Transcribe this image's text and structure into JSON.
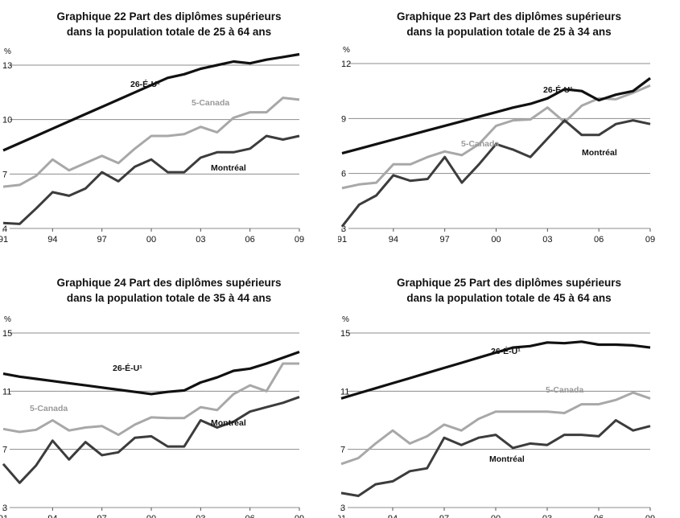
{
  "colors": {
    "usa": "#111111",
    "canada": "#a8a8a8",
    "montreal": "#3c3c3c",
    "grid": "#8c8c8c"
  },
  "chart_data": [
    {
      "type": "line",
      "title": "Graphique 22 Part des diplômes supérieurs",
      "subtitle": "dans la population totale de 25 à 64 ans",
      "ylabel": "%",
      "ylim": [
        4,
        13
      ],
      "yticks": [
        "4",
        "7",
        "10",
        "13"
      ],
      "x": [
        1991,
        1992,
        1993,
        1994,
        1995,
        1996,
        1997,
        1998,
        1999,
        2000,
        2001,
        2002,
        2003,
        2004,
        2005,
        2006,
        2007,
        2008,
        2009
      ],
      "xticks": [
        "91",
        "94",
        "97",
        "00",
        "03",
        "06",
        "09"
      ],
      "grid": true,
      "series": [
        {
          "name": "26-É-U¹",
          "values": [
            8.3,
            8.7,
            9.1,
            9.5,
            9.9,
            10.3,
            10.7,
            11.1,
            11.5,
            11.9,
            12.3,
            12.5,
            12.8,
            13.0,
            13.2,
            13.1,
            13.3,
            13.45,
            13.6
          ]
        },
        {
          "name": "5-Canada",
          "values": [
            6.3,
            6.4,
            6.9,
            7.8,
            7.2,
            7.6,
            8.0,
            7.6,
            8.4,
            9.1,
            9.1,
            9.2,
            9.6,
            9.3,
            10.1,
            10.4,
            10.4,
            11.2,
            11.1
          ]
        },
        {
          "name": "Montréal",
          "values": [
            4.3,
            4.25,
            5.1,
            6.0,
            5.8,
            6.2,
            7.1,
            6.6,
            7.4,
            7.8,
            7.1,
            7.1,
            7.9,
            8.2,
            8.2,
            8.4,
            9.1,
            8.9,
            9.1
          ]
        }
      ]
    },
    {
      "type": "line",
      "title": "Graphique 23 Part des diplômes supérieurs",
      "subtitle": "dans la population totale de 25 à 34 ans",
      "ylabel": "%",
      "ylim": [
        3,
        12
      ],
      "yticks": [
        "3",
        "6",
        "9",
        "12"
      ],
      "x": [
        1991,
        1992,
        1993,
        1994,
        1995,
        1996,
        1997,
        1998,
        1999,
        2000,
        2001,
        2002,
        2003,
        2004,
        2005,
        2006,
        2007,
        2008,
        2009
      ],
      "xticks": [
        "91",
        "94",
        "97",
        "00",
        "03",
        "06",
        "09"
      ],
      "grid": true,
      "series": [
        {
          "name": "26-É-U¹",
          "values": [
            7.1,
            7.35,
            7.6,
            7.85,
            8.1,
            8.35,
            8.6,
            8.85,
            9.1,
            9.35,
            9.6,
            9.8,
            10.1,
            10.6,
            10.5,
            10.0,
            10.3,
            10.5,
            11.2
          ]
        },
        {
          "name": "5-Canada",
          "values": [
            5.2,
            5.4,
            5.5,
            6.5,
            6.5,
            6.9,
            7.2,
            7.0,
            7.6,
            8.6,
            8.9,
            8.95,
            9.6,
            8.8,
            9.7,
            10.1,
            10.05,
            10.4,
            10.8
          ]
        },
        {
          "name": "Montréal",
          "values": [
            3.1,
            4.3,
            4.8,
            5.9,
            5.6,
            5.7,
            6.9,
            5.5,
            6.5,
            7.6,
            7.3,
            6.9,
            7.9,
            8.9,
            8.1,
            8.1,
            8.7,
            8.9,
            8.7
          ]
        }
      ]
    },
    {
      "type": "line",
      "title": "Graphique 24 Part des diplômes supérieurs",
      "subtitle": "dans la population totale de 35 à 44 ans",
      "ylabel": "%",
      "ylim": [
        3,
        15
      ],
      "yticks": [
        "3",
        "7",
        "11",
        "15"
      ],
      "x": [
        1991,
        1992,
        1993,
        1994,
        1995,
        1996,
        1997,
        1998,
        1999,
        2000,
        2001,
        2002,
        2003,
        2004,
        2005,
        2006,
        2007,
        2008,
        2009
      ],
      "xticks": [
        "91",
        "94",
        "97",
        "00",
        "03",
        "06",
        "09"
      ],
      "grid": true,
      "series": [
        {
          "name": "26-É-U¹",
          "values": [
            12.2,
            12.0,
            11.85,
            11.7,
            11.55,
            11.4,
            11.25,
            11.1,
            10.95,
            10.8,
            10.95,
            11.05,
            11.6,
            11.95,
            12.4,
            12.55,
            12.9,
            13.3,
            13.7
          ]
        },
        {
          "name": "5-Canada",
          "values": [
            8.4,
            8.2,
            8.35,
            9.0,
            8.3,
            8.5,
            8.6,
            8.0,
            8.7,
            9.2,
            9.15,
            9.15,
            9.9,
            9.7,
            10.8,
            11.4,
            11.0,
            12.9,
            12.9
          ]
        },
        {
          "name": "Montréal",
          "values": [
            6.0,
            4.7,
            5.9,
            7.6,
            6.3,
            7.5,
            6.6,
            6.8,
            7.8,
            7.9,
            7.2,
            7.2,
            9.0,
            8.5,
            8.9,
            9.6,
            9.9,
            10.2,
            10.6
          ]
        }
      ]
    },
    {
      "type": "line",
      "title": "Graphique 25 Part des diplômes supérieurs",
      "subtitle": "dans la population totale de 45 à 64 ans",
      "ylabel": "%",
      "ylim": [
        3,
        15
      ],
      "yticks": [
        "3",
        "7",
        "11",
        "15"
      ],
      "x": [
        1991,
        1992,
        1993,
        1994,
        1995,
        1996,
        1997,
        1998,
        1999,
        2000,
        2001,
        2002,
        2003,
        2004,
        2005,
        2006,
        2007,
        2008,
        2009
      ],
      "xticks": [
        "91",
        "94",
        "97",
        "00",
        "03",
        "06",
        "09"
      ],
      "grid": true,
      "series": [
        {
          "name": "26-É-U¹",
          "values": [
            10.5,
            10.85,
            11.2,
            11.55,
            11.9,
            12.25,
            12.6,
            12.95,
            13.3,
            13.65,
            14.0,
            14.1,
            14.35,
            14.3,
            14.4,
            14.2,
            14.2,
            14.15,
            14.0
          ]
        },
        {
          "name": "5-Canada",
          "values": [
            6.0,
            6.4,
            7.4,
            8.3,
            7.4,
            7.9,
            8.7,
            8.3,
            9.1,
            9.6,
            9.6,
            9.6,
            9.6,
            9.5,
            10.1,
            10.1,
            10.4,
            10.9,
            10.5
          ]
        },
        {
          "name": "Montréal",
          "values": [
            4.0,
            3.8,
            4.6,
            4.8,
            5.5,
            5.7,
            7.8,
            7.3,
            7.8,
            8.0,
            7.1,
            7.4,
            7.3,
            8.0,
            8.0,
            7.9,
            9.0,
            8.3,
            8.6
          ]
        }
      ]
    }
  ],
  "labels": [
    {
      "usa": "26-É-U¹",
      "canada": "5-Canada",
      "montreal": "Montréal"
    },
    {
      "usa": "26-É-U¹",
      "canada": "5-Canada",
      "montreal": "Montréal"
    },
    {
      "usa": "26-É-U¹",
      "canada": "5-Canada",
      "montreal": "Montréal"
    },
    {
      "usa": "26-É-U¹",
      "canada": "5-Canada",
      "montreal": "Montréal"
    }
  ]
}
